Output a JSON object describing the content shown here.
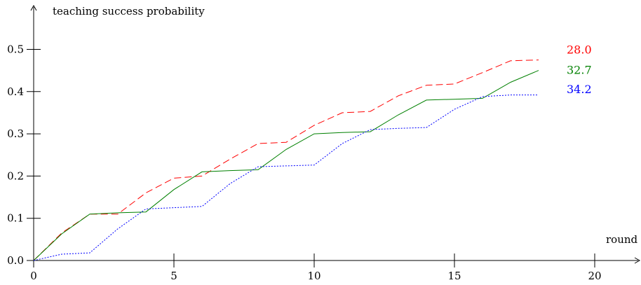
{
  "chart_data": {
    "type": "line",
    "title": "",
    "xlabel": "round",
    "ylabel": "teaching success probability",
    "xlim": [
      0,
      21.5
    ],
    "ylim": [
      0,
      0.55
    ],
    "x_ticks": [
      0,
      5,
      10,
      15,
      20
    ],
    "y_ticks": [
      0.0,
      0.1,
      0.2,
      0.3,
      0.4,
      0.5
    ],
    "x_tick_labels": [
      "0",
      "5",
      "10",
      "15",
      "20"
    ],
    "y_tick_labels": [
      "0.0",
      "0.1",
      "0.2",
      "0.3",
      "0.4",
      "0.5"
    ],
    "grid": false,
    "series": [
      {
        "end_label": "28.0",
        "color": "#ff0000",
        "dash": "dashed",
        "x": [
          0,
          1,
          2,
          3,
          4,
          5,
          6,
          7,
          8,
          9,
          10,
          11,
          12,
          13,
          14,
          15,
          16,
          17,
          18
        ],
        "y": [
          0.0,
          0.065,
          0.11,
          0.11,
          0.16,
          0.195,
          0.2,
          0.24,
          0.277,
          0.28,
          0.32,
          0.35,
          0.353,
          0.39,
          0.415,
          0.418,
          0.445,
          0.473,
          0.475
        ]
      },
      {
        "end_label": "32.7",
        "color": "#008000",
        "dash": "solid",
        "x": [
          0,
          1,
          2,
          3,
          4,
          5,
          6,
          7,
          8,
          9,
          10,
          11,
          12,
          13,
          14,
          15,
          16,
          17,
          18
        ],
        "y": [
          0.0,
          0.063,
          0.11,
          0.113,
          0.115,
          0.168,
          0.21,
          0.213,
          0.215,
          0.263,
          0.3,
          0.303,
          0.305,
          0.345,
          0.38,
          0.382,
          0.384,
          0.422,
          0.45
        ]
      },
      {
        "end_label": "34.2",
        "color": "#0000ff",
        "dash": "dotted",
        "x": [
          0,
          1,
          2,
          3,
          4,
          5,
          6,
          7,
          8,
          9,
          10,
          11,
          12,
          13,
          14,
          15,
          16,
          17,
          18
        ],
        "y": [
          0.0,
          0.015,
          0.018,
          0.075,
          0.122,
          0.125,
          0.128,
          0.182,
          0.222,
          0.224,
          0.226,
          0.277,
          0.31,
          0.313,
          0.315,
          0.358,
          0.388,
          0.392,
          0.392
        ]
      }
    ]
  }
}
